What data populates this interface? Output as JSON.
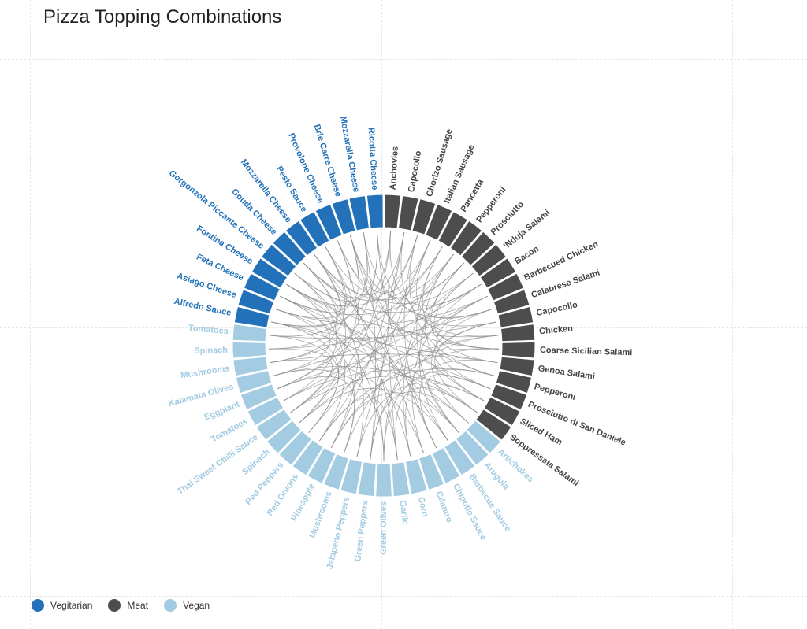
{
  "title": "Pizza Topping Combinations",
  "colors": {
    "Vegitarian": "#2372b9",
    "Meat": "#4d4d4d",
    "Vegan": "#a3cbe2",
    "chord": "#8c8c8c"
  },
  "legend": [
    {
      "label": "Vegitarian",
      "category": "Vegitarian"
    },
    {
      "label": "Meat",
      "category": "Meat"
    },
    {
      "label": "Vegan",
      "category": "Vegan"
    }
  ],
  "chart_data": {
    "type": "chord",
    "title": "Pizza Topping Combinations",
    "legend_position": "bottom-left",
    "segments": [
      {
        "label": "Anchovies",
        "category": "Meat"
      },
      {
        "label": "Capocollo",
        "category": "Meat"
      },
      {
        "label": "Chorizo Sausage",
        "category": "Meat"
      },
      {
        "label": "Italian Sausage",
        "category": "Meat"
      },
      {
        "label": "Pancetta",
        "category": "Meat"
      },
      {
        "label": "Pepperoni",
        "category": "Meat"
      },
      {
        "label": "Prosciutto",
        "category": "Meat"
      },
      {
        "label": "'Nduja Salami",
        "category": "Meat"
      },
      {
        "label": "Bacon",
        "category": "Meat"
      },
      {
        "label": "Barbecued Chicken",
        "category": "Meat"
      },
      {
        "label": "Calabrese Salami",
        "category": "Meat"
      },
      {
        "label": "Capocollo",
        "category": "Meat"
      },
      {
        "label": "Chicken",
        "category": "Meat"
      },
      {
        "label": "Coarse Sicilian Salami",
        "category": "Meat"
      },
      {
        "label": "Genoa Salami",
        "category": "Meat"
      },
      {
        "label": "Pepperoni",
        "category": "Meat"
      },
      {
        "label": "Prosciutto di San Daniele",
        "category": "Meat"
      },
      {
        "label": "Sliced Ham",
        "category": "Meat"
      },
      {
        "label": "Soppressata Salami",
        "category": "Meat"
      },
      {
        "label": "Artichokes",
        "category": "Vegan"
      },
      {
        "label": "Arugula",
        "category": "Vegan"
      },
      {
        "label": "Barbecue Sauce",
        "category": "Vegan"
      },
      {
        "label": "Chipotle Sauce",
        "category": "Vegan"
      },
      {
        "label": "Cilantro",
        "category": "Vegan"
      },
      {
        "label": "Corn",
        "category": "Vegan"
      },
      {
        "label": "Garlic",
        "category": "Vegan"
      },
      {
        "label": "Green Olives",
        "category": "Vegan"
      },
      {
        "label": "Green Peppers",
        "category": "Vegan"
      },
      {
        "label": "Jalapeno Peppers",
        "category": "Vegan"
      },
      {
        "label": "Mushrooms",
        "category": "Vegan"
      },
      {
        "label": "Pineapple",
        "category": "Vegan"
      },
      {
        "label": "Red Onions",
        "category": "Vegan"
      },
      {
        "label": "Red Peppers",
        "category": "Vegan"
      },
      {
        "label": "Spinach",
        "category": "Vegan"
      },
      {
        "label": "Thai Sweet Chilli Sauce",
        "category": "Vegan"
      },
      {
        "label": "Tomatoes",
        "category": "Vegan"
      },
      {
        "label": "Eggplant",
        "category": "Vegan"
      },
      {
        "label": "Kalamata Olives",
        "category": "Vegan"
      },
      {
        "label": "Mushrooms",
        "category": "Vegan"
      },
      {
        "label": "Spinach",
        "category": "Vegan"
      },
      {
        "label": "Tomatoes",
        "category": "Vegan"
      },
      {
        "label": "Alfredo Sauce",
        "category": "Vegitarian"
      },
      {
        "label": "Asiago Cheese",
        "category": "Vegitarian"
      },
      {
        "label": "Feta Cheese",
        "category": "Vegitarian"
      },
      {
        "label": "Fontina Cheese",
        "category": "Vegitarian"
      },
      {
        "label": "Gorgonzola Piccante Cheese",
        "category": "Vegitarian"
      },
      {
        "label": "Gouda Cheese",
        "category": "Vegitarian"
      },
      {
        "label": "Mozzarella Cheese",
        "category": "Vegitarian"
      },
      {
        "label": "Pesto Sauce",
        "category": "Vegitarian"
      },
      {
        "label": "Provolone Cheese",
        "category": "Vegitarian"
      },
      {
        "label": "Brie Carre Cheese",
        "category": "Vegitarian"
      },
      {
        "label": "Mozzarella Cheese",
        "category": "Vegitarian"
      },
      {
        "label": "Ricotta Cheese",
        "category": "Vegitarian"
      }
    ],
    "links": [
      [
        0,
        25
      ],
      [
        0,
        33
      ],
      [
        0,
        41
      ],
      [
        1,
        27
      ],
      [
        1,
        30
      ],
      [
        1,
        47
      ],
      [
        2,
        22
      ],
      [
        2,
        36
      ],
      [
        2,
        44
      ],
      [
        3,
        28
      ],
      [
        3,
        31
      ],
      [
        3,
        49
      ],
      [
        4,
        20
      ],
      [
        4,
        38
      ],
      [
        4,
        46
      ],
      [
        5,
        24
      ],
      [
        5,
        32
      ],
      [
        5,
        47
      ],
      [
        6,
        21
      ],
      [
        6,
        43
      ],
      [
        6,
        50
      ],
      [
        7,
        26
      ],
      [
        7,
        34
      ],
      [
        7,
        48
      ],
      [
        8,
        23
      ],
      [
        8,
        37
      ],
      [
        8,
        45
      ],
      [
        9,
        29
      ],
      [
        9,
        35
      ],
      [
        9,
        42
      ],
      [
        10,
        19
      ],
      [
        10,
        39
      ],
      [
        10,
        51
      ],
      [
        11,
        24
      ],
      [
        11,
        40
      ],
      [
        11,
        52
      ],
      [
        12,
        27
      ],
      [
        12,
        33
      ],
      [
        12,
        44
      ],
      [
        13,
        30
      ],
      [
        13,
        36
      ],
      [
        13,
        46
      ],
      [
        14,
        22
      ],
      [
        14,
        38
      ],
      [
        14,
        41
      ],
      [
        15,
        26
      ],
      [
        15,
        31
      ],
      [
        15,
        49
      ],
      [
        16,
        20
      ],
      [
        16,
        35
      ],
      [
        16,
        43
      ],
      [
        17,
        28
      ],
      [
        17,
        34
      ],
      [
        17,
        50
      ],
      [
        18,
        25
      ],
      [
        18,
        37
      ],
      [
        18,
        42
      ],
      [
        19,
        41
      ],
      [
        20,
        44
      ],
      [
        21,
        47
      ],
      [
        22,
        52
      ],
      [
        23,
        50
      ],
      [
        24,
        45
      ],
      [
        25,
        48
      ],
      [
        26,
        43
      ],
      [
        27,
        51
      ],
      [
        28,
        46
      ],
      [
        29,
        42
      ],
      [
        30,
        49
      ],
      [
        31,
        44
      ],
      [
        32,
        41
      ],
      [
        33,
        47
      ],
      [
        34,
        50
      ],
      [
        35,
        45
      ],
      [
        36,
        52
      ],
      [
        37,
        43
      ],
      [
        38,
        48
      ],
      [
        39,
        46
      ],
      [
        40,
        51
      ],
      [
        19,
        27
      ],
      [
        21,
        33
      ],
      [
        23,
        38
      ],
      [
        25,
        31
      ],
      [
        29,
        36
      ],
      [
        32,
        40
      ],
      [
        34,
        39
      ],
      [
        26,
        37
      ],
      [
        20,
        30
      ],
      [
        0,
        8
      ],
      [
        1,
        12
      ],
      [
        2,
        15
      ],
      [
        3,
        10
      ],
      [
        5,
        17
      ],
      [
        6,
        14
      ],
      [
        7,
        13
      ],
      [
        9,
        16
      ],
      [
        11,
        18
      ],
      [
        4,
        13
      ],
      [
        41,
        47
      ],
      [
        42,
        49
      ],
      [
        44,
        50
      ],
      [
        45,
        52
      ],
      [
        43,
        48
      ],
      [
        46,
        51
      ]
    ]
  }
}
